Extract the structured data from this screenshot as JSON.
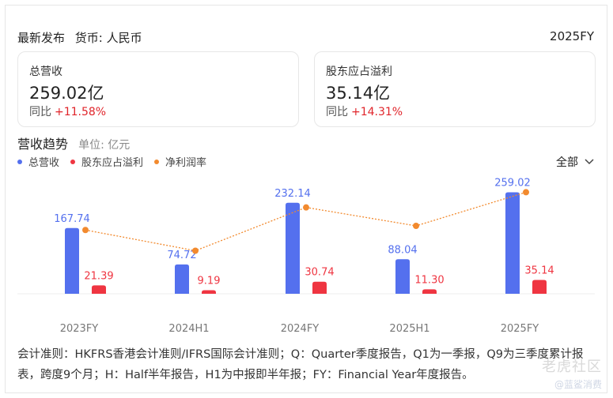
{
  "header": {
    "title": "最新发布",
    "currency": "货币: 人民币",
    "period": "2025FY"
  },
  "cards": [
    {
      "label": "总营收",
      "value": "259.02亿",
      "yoy_label": "同比",
      "yoy_value": "+11.58%"
    },
    {
      "label": "股东应占溢利",
      "value": "35.14亿",
      "yoy_label": "同比",
      "yoy_value": "+14.31%"
    }
  ],
  "section": {
    "title": "营收趋势",
    "unit": "单位: 亿元"
  },
  "filter": {
    "label": "全部"
  },
  "colors": {
    "revenue": "#5470ee",
    "profit": "#ef3541",
    "margin": "#f28a2e",
    "up": "#e0242a"
  },
  "chart_data": {
    "type": "bar",
    "categories": [
      "2023FY",
      "2024H1",
      "2024FY",
      "2025H1",
      "2025FY"
    ],
    "series": [
      {
        "name": "总营收",
        "kind": "bar",
        "values": [
          167.74,
          74.72,
          232.14,
          88.04,
          259.02
        ],
        "labels": [
          "167.74",
          "74.72",
          "232.14",
          "88.04",
          "259.02"
        ]
      },
      {
        "name": "股东应占溢利",
        "kind": "bar",
        "values": [
          21.39,
          9.19,
          30.74,
          11.3,
          35.14
        ],
        "labels": [
          "21.39",
          "9.19",
          "30.74",
          "11.30",
          "35.14"
        ]
      },
      {
        "name": "净利润率",
        "kind": "line",
        "values": [
          12.75,
          12.3,
          13.24,
          12.84,
          13.57
        ]
      }
    ],
    "ylim": [
      0,
      270
    ],
    "margin_ylim": [
      11.4,
      13.8
    ],
    "legend_position": "top-left"
  },
  "note": "会计准则：HKFRS香港会计准则/IFRS国际会计准则；Q：Quarter季度报告，Q1为一季报，Q9为三季度累计报表，跨度9个月；H：Half半年报告，H1为中报即半年报；FY：Financial Year年度报告。",
  "watermark": "老虎社区",
  "watermark_sub": "@蓝鲨消费"
}
